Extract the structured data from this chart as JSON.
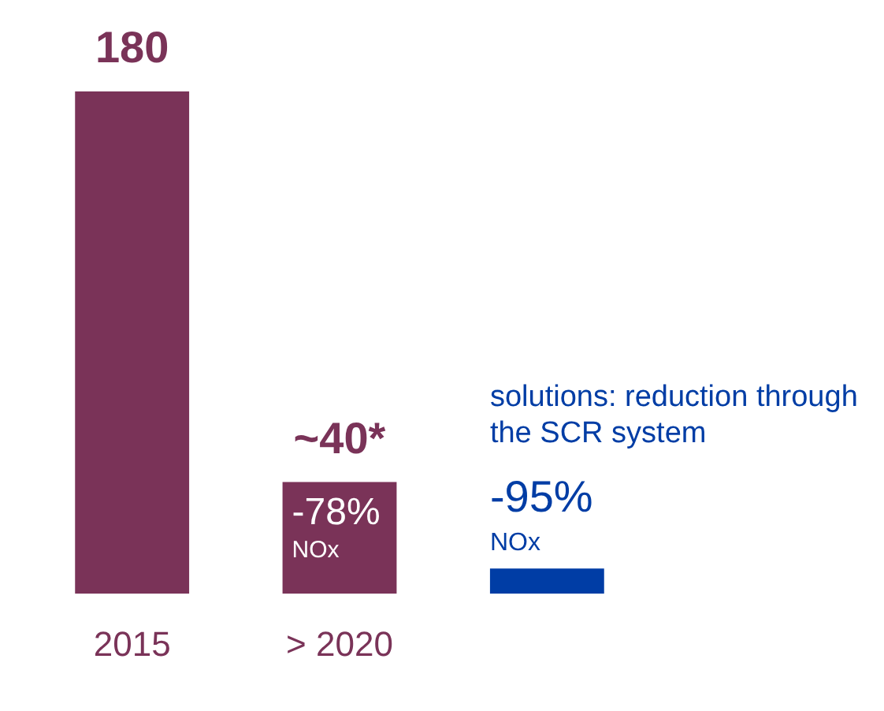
{
  "chart_data": {
    "type": "bar",
    "title": "solutions: reduction through the SCR system",
    "categories": [
      "2015",
      "> 2020",
      null
    ],
    "values": [
      180,
      40,
      9
    ],
    "colors": [
      "#7a3358",
      "#7a3358",
      "#003da5"
    ],
    "value_labels": [
      "180",
      "~40*",
      null
    ],
    "annotations": [
      "-78%",
      "NOx",
      "-95%",
      "NOx"
    ],
    "grid": false,
    "legend": false,
    "tick_labels": "x"
  }
}
